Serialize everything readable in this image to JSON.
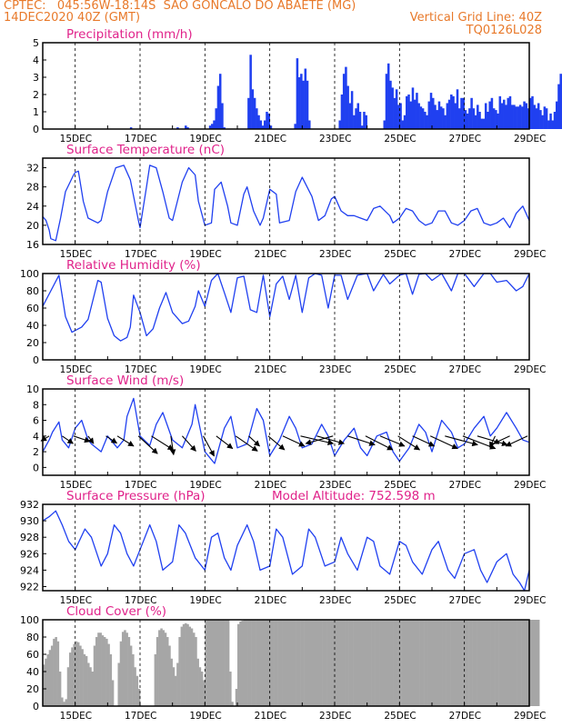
{
  "header": {
    "line1_left": "CPTEC:   045:56W-18:14S  SAO GONCALO DO ABAETE (MG)",
    "line2_left": "14DEC2020 40Z (GMT)",
    "line2_right": "Vertical Grid Line: 40Z",
    "line3_right": "TQ0126L028"
  },
  "colors": {
    "header": "#e8792a",
    "title": "#e0228a",
    "line": "#2040f0",
    "cloud": "#a6a6a6",
    "arrow": "#000000"
  },
  "x_axis": {
    "range_days": [
      14.0,
      29.0
    ],
    "ticks": [
      15,
      17,
      19,
      21,
      23,
      25,
      27,
      29
    ],
    "tick_labels": [
      "15DEC",
      "17DEC",
      "19DEC",
      "21DEC",
      "23DEC",
      "25DEC",
      "27DEC",
      "29DEC"
    ]
  },
  "chart_data": [
    {
      "type": "bar",
      "title": "Precipitation (mm/h)",
      "ylim": [
        0,
        5
      ],
      "yticks": [
        0,
        1,
        2,
        3,
        4,
        5
      ],
      "x_start_day": 14.0,
      "x_step_days": 0.0625,
      "values": [
        0,
        0,
        0,
        0,
        0,
        0,
        0,
        0,
        0,
        0,
        0,
        0,
        0,
        0,
        0,
        0,
        0,
        0,
        0,
        0,
        0,
        0,
        0,
        0,
        0,
        0,
        0,
        0,
        0,
        0,
        0,
        0,
        0,
        0,
        0,
        0,
        0,
        0,
        0,
        0,
        0,
        0,
        0,
        0.1,
        0,
        0,
        0,
        0,
        0,
        0,
        0,
        0,
        0,
        0,
        0,
        0,
        0,
        0,
        0,
        0,
        0,
        0,
        0,
        0,
        0,
        0,
        0.1,
        0,
        0,
        0,
        0.2,
        0.1,
        0,
        0,
        0,
        0,
        0,
        0,
        0,
        0,
        0,
        0,
        0.2,
        0.3,
        0.5,
        1.2,
        2.5,
        3.2,
        1.5,
        0.1,
        0,
        0,
        0,
        0,
        0,
        0,
        0,
        0,
        0,
        0,
        0,
        1.8,
        4.3,
        2.3,
        1.8,
        1.2,
        0.8,
        0.5,
        0.2,
        0.5,
        1.0,
        0.9,
        0.2,
        0,
        0,
        0,
        0,
        0,
        0,
        0,
        0,
        0,
        0,
        0,
        0.3,
        4.1,
        3.0,
        3.2,
        2.8,
        3.5,
        2.8,
        0.5,
        0,
        0,
        0,
        0,
        0,
        0,
        0,
        0,
        0,
        0,
        0,
        0,
        0,
        0,
        0.5,
        2.0,
        3.2,
        3.6,
        2.5,
        1.5,
        2.2,
        0.8,
        1.2,
        1.5,
        1.0,
        0.2,
        1.0,
        0.8,
        0,
        0,
        0,
        0,
        0,
        0,
        0,
        0,
        0.5,
        3.2,
        3.8,
        2.8,
        2.4,
        1.8,
        2.3,
        1.4,
        1.5,
        0.5,
        0.8,
        1.9,
        2.0,
        1.6,
        2.4,
        1.7,
        2.1,
        1.5,
        1.3,
        1.2,
        1.0,
        0.8,
        1.6,
        2.1,
        1.8,
        1.4,
        1.1,
        1.6,
        1.3,
        1.2,
        0.8,
        1.5,
        1.7,
        2.0,
        1.9,
        1.5,
        2.3,
        1.2,
        1.8,
        1.8,
        1.1,
        0.9,
        1.2,
        1.8,
        1.2,
        0.8,
        1.4,
        1.0,
        0.6,
        0.6,
        1.5,
        1.0,
        1.6,
        1.8,
        1.2,
        1.1,
        0.9,
        1.9,
        1.5,
        1.7,
        1.4,
        1.8,
        1.9,
        1.4,
        1.4,
        1.3,
        1.3,
        1.4,
        1.3,
        1.6,
        1.5,
        1.2,
        1.8,
        1.9,
        1.4,
        1.2,
        1.5,
        1.1,
        0.8,
        1.3,
        1.2,
        0.5,
        0.9,
        0.5,
        1.0,
        1.6,
        2.6,
        3.2,
        2.9,
        1.5,
        0.6,
        0.3,
        0.1
      ]
    },
    {
      "type": "line",
      "title": "Surface Temperature (nC)",
      "ylim": [
        16,
        34
      ],
      "yticks": [
        16,
        20,
        24,
        28,
        32
      ],
      "x": [
        14.0,
        14.1,
        14.2,
        14.25,
        14.4,
        14.55,
        14.7,
        14.95,
        15.0,
        15.1,
        15.25,
        15.4,
        15.7,
        15.8,
        16.0,
        16.25,
        16.5,
        16.7,
        16.95,
        17.0,
        17.2,
        17.3,
        17.5,
        17.7,
        17.9,
        18.0,
        18.3,
        18.5,
        18.7,
        18.8,
        19.0,
        19.2,
        19.3,
        19.5,
        19.7,
        19.8,
        20.0,
        20.2,
        20.3,
        20.5,
        20.7,
        20.8,
        21.0,
        21.2,
        21.3,
        21.6,
        21.8,
        22.0,
        22.3,
        22.5,
        22.7,
        22.9,
        23.0,
        23.2,
        23.4,
        23.6,
        23.8,
        24.0,
        24.2,
        24.4,
        24.7,
        24.8,
        25.0,
        25.2,
        25.4,
        25.6,
        25.8,
        26.0,
        26.2,
        26.4,
        26.6,
        26.8,
        27.0,
        27.2,
        27.4,
        27.6,
        27.8,
        28.0,
        28.2,
        28.4,
        28.6,
        28.8,
        29.0
      ],
      "values": [
        21.8,
        21.0,
        19.0,
        17.2,
        16.8,
        21.5,
        27.0,
        30.5,
        31.0,
        31.3,
        25.0,
        21.5,
        20.5,
        21.0,
        27.0,
        32.0,
        32.5,
        29.5,
        21.0,
        19.5,
        28.0,
        32.5,
        32.0,
        27.0,
        21.5,
        21.0,
        29.0,
        32.0,
        30.5,
        25.0,
        20.0,
        20.5,
        27.5,
        29.0,
        24.0,
        20.5,
        20.0,
        26.5,
        28.0,
        23.0,
        20.0,
        21.5,
        27.5,
        26.5,
        20.5,
        21.0,
        27.0,
        30.0,
        26.0,
        21.0,
        22.0,
        25.5,
        26.0,
        23.0,
        22.0,
        22.0,
        21.5,
        21.0,
        23.5,
        24.0,
        22.0,
        20.5,
        21.5,
        23.5,
        23.0,
        21.0,
        20.0,
        20.5,
        23.0,
        23.0,
        20.5,
        20.0,
        21.0,
        23.0,
        23.5,
        20.5,
        20.0,
        20.5,
        21.5,
        19.5,
        22.5,
        24.0,
        21.0
      ]
    },
    {
      "type": "line",
      "title": "Relative Humidity (%)",
      "ylim": [
        0,
        100
      ],
      "yticks": [
        0,
        20,
        40,
        60,
        80,
        100
      ],
      "x": [
        14.0,
        14.25,
        14.5,
        14.7,
        14.9,
        15.2,
        15.4,
        15.7,
        15.8,
        16.0,
        16.2,
        16.4,
        16.6,
        16.7,
        16.8,
        17.0,
        17.2,
        17.4,
        17.6,
        17.8,
        18.0,
        18.3,
        18.5,
        18.7,
        18.8,
        19.0,
        19.2,
        19.4,
        19.6,
        19.8,
        20.0,
        20.2,
        20.4,
        20.6,
        20.8,
        21.0,
        21.2,
        21.4,
        21.6,
        21.8,
        22.0,
        22.2,
        22.4,
        22.6,
        22.8,
        23.0,
        23.2,
        23.4,
        23.7,
        24.0,
        24.2,
        24.5,
        24.7,
        25.0,
        25.2,
        25.4,
        25.6,
        25.8,
        26.0,
        26.3,
        26.6,
        26.8,
        27.0,
        27.3,
        27.6,
        27.8,
        28.0,
        28.3,
        28.6,
        28.8,
        29.0
      ],
      "values": [
        62,
        80,
        98,
        50,
        32,
        38,
        47,
        92,
        90,
        48,
        28,
        22,
        26,
        38,
        75,
        55,
        28,
        36,
        60,
        78,
        55,
        42,
        45,
        62,
        80,
        62,
        92,
        100,
        78,
        55,
        95,
        97,
        58,
        55,
        98,
        50,
        88,
        97,
        70,
        98,
        55,
        95,
        100,
        98,
        60,
        98,
        98,
        70,
        98,
        100,
        80,
        99,
        88,
        98,
        100,
        76,
        99,
        100,
        92,
        100,
        80,
        100,
        100,
        85,
        100,
        100,
        90,
        92,
        80,
        85,
        100
      ]
    },
    {
      "type": "line",
      "title": "Surface Wind (m/s)",
      "ylim": [
        -1,
        10
      ],
      "yticks": [
        0,
        2,
        4,
        6,
        8,
        10
      ],
      "x": [
        14.0,
        14.2,
        14.3,
        14.5,
        14.6,
        14.8,
        15.0,
        15.2,
        15.4,
        15.5,
        15.8,
        16.0,
        16.3,
        16.5,
        16.6,
        16.8,
        17.0,
        17.3,
        17.5,
        17.7,
        18.0,
        18.3,
        18.6,
        18.7,
        19.0,
        19.3,
        19.6,
        19.8,
        20.0,
        20.3,
        20.6,
        20.8,
        21.0,
        21.3,
        21.6,
        21.8,
        22.0,
        22.3,
        22.6,
        22.8,
        23.0,
        23.3,
        23.6,
        23.8,
        24.0,
        24.3,
        24.6,
        24.8,
        25.0,
        25.3,
        25.6,
        25.8,
        26.0,
        26.3,
        26.6,
        26.8,
        27.0,
        27.3,
        27.6,
        27.8,
        28.0,
        28.3,
        28.6,
        28.8,
        29.0
      ],
      "values": [
        2.0,
        3.5,
        4.5,
        5.8,
        3.5,
        2.5,
        5.0,
        6.0,
        3.5,
        3.0,
        2.0,
        4.0,
        2.5,
        3.5,
        6.5,
        8.8,
        4.0,
        2.8,
        5.5,
        7.0,
        3.5,
        2.5,
        5.5,
        8.0,
        2.0,
        0.5,
        5.0,
        6.5,
        2.5,
        3.0,
        7.5,
        6.0,
        1.5,
        3.5,
        6.5,
        5.0,
        2.5,
        3.0,
        5.5,
        4.0,
        1.5,
        3.5,
        5.0,
        2.5,
        1.5,
        4.0,
        4.5,
        2.0,
        0.8,
        2.5,
        5.5,
        4.5,
        2.0,
        6.0,
        4.5,
        2.5,
        3.0,
        5.0,
        6.5,
        4.0,
        5.0,
        7.0,
        5.0,
        3.5,
        3.2
      ],
      "arrows": [
        [
          14.2,
          0.2,
          -0.15
        ],
        [
          14.95,
          0.22,
          0.3
        ],
        [
          15.95,
          0.28,
          0.2
        ],
        [
          16.95,
          0.7,
          0.35
        ],
        [
          17.95,
          0.75,
          0.05
        ],
        [
          18.95,
          0.8,
          0.2
        ],
        [
          19.95,
          0.6,
          0.4
        ],
        [
          20.95,
          0.55,
          0.3
        ],
        [
          21.95,
          0.3,
          0.6
        ],
        [
          22.95,
          0.3,
          -0.5
        ],
        [
          23.95,
          0.55,
          0.5
        ],
        [
          24.95,
          0.55,
          0.4
        ],
        [
          25.95,
          0.5,
          0.5
        ],
        [
          26.95,
          0.5,
          0.6
        ],
        [
          27.95,
          0.45,
          -0.1
        ],
        [
          28.95,
          0.4,
          -0.4
        ],
        [
          14.6,
          0.3,
          0.2
        ],
        [
          15.4,
          0.3,
          0.1
        ],
        [
          16.3,
          0.4,
          0.3
        ],
        [
          17.35,
          0.55,
          0.4
        ],
        [
          18.3,
          0.6,
          0.25
        ],
        [
          19.35,
          0.5,
          0.3
        ],
        [
          20.35,
          0.4,
          0.2
        ],
        [
          21.4,
          0.4,
          0.4
        ],
        [
          22.45,
          0.3,
          0.5
        ],
        [
          23.4,
          0.35,
          0.5
        ],
        [
          24.4,
          0.4,
          0.45
        ],
        [
          25.4,
          0.4,
          0.4
        ],
        [
          26.4,
          0.35,
          0.6
        ],
        [
          27.4,
          0.35,
          0.55
        ],
        [
          28.4,
          0.3,
          -0.3
        ]
      ]
    },
    {
      "type": "line",
      "title": "Surface Pressure (hPa)",
      "subtitle": "Model Altitude: 752.598 m",
      "ylim": [
        921.5,
        932
      ],
      "yticks": [
        922,
        924,
        926,
        928,
        930,
        932
      ],
      "x": [
        14.0,
        14.2,
        14.4,
        14.6,
        14.8,
        15.0,
        15.3,
        15.5,
        15.8,
        16.0,
        16.2,
        16.4,
        16.6,
        16.8,
        17.0,
        17.3,
        17.5,
        17.7,
        18.0,
        18.2,
        18.4,
        18.7,
        19.0,
        19.2,
        19.4,
        19.6,
        19.8,
        20.0,
        20.3,
        20.5,
        20.7,
        21.0,
        21.2,
        21.4,
        21.7,
        22.0,
        22.2,
        22.4,
        22.7,
        23.0,
        23.2,
        23.4,
        23.7,
        24.0,
        24.2,
        24.4,
        24.7,
        25.0,
        25.2,
        25.4,
        25.7,
        26.0,
        26.2,
        26.5,
        26.7,
        27.0,
        27.3,
        27.5,
        27.7,
        28.0,
        28.3,
        28.5,
        28.7,
        28.85,
        29.0
      ],
      "values": [
        930.0,
        930.5,
        931.2,
        929.5,
        927.5,
        926.5,
        929.0,
        928.0,
        924.5,
        926.0,
        929.5,
        928.5,
        926.0,
        924.5,
        926.5,
        929.5,
        927.5,
        924.0,
        925.0,
        929.5,
        928.5,
        925.5,
        924.0,
        928.0,
        928.5,
        925.5,
        924.0,
        927.0,
        929.5,
        927.5,
        924.0,
        924.5,
        929.0,
        928.0,
        923.5,
        924.5,
        929.0,
        928.0,
        924.5,
        925.0,
        928.0,
        926.0,
        924.0,
        928.0,
        927.5,
        924.5,
        923.5,
        927.5,
        927.0,
        925.0,
        923.5,
        926.5,
        927.5,
        924.0,
        923.0,
        926.0,
        926.5,
        924.0,
        922.5,
        925.0,
        926.0,
        923.5,
        922.5,
        921.5,
        924.0
      ]
    },
    {
      "type": "bar",
      "title": "Cloud Cover (%)",
      "ylim": [
        0,
        100
      ],
      "yticks": [
        0,
        20,
        40,
        60,
        80,
        100
      ],
      "x_start_day": 14.0,
      "x_step_days": 0.0625,
      "values": [
        48,
        55,
        60,
        65,
        70,
        78,
        80,
        75,
        40,
        10,
        5,
        8,
        45,
        62,
        68,
        72,
        75,
        74,
        70,
        66,
        60,
        58,
        50,
        45,
        40,
        70,
        80,
        85,
        85,
        82,
        80,
        78,
        72,
        60,
        30,
        0,
        0,
        50,
        75,
        86,
        88,
        85,
        80,
        70,
        60,
        45,
        35,
        20,
        0,
        0,
        0,
        0,
        0,
        0,
        0,
        60,
        80,
        88,
        90,
        88,
        85,
        80,
        70,
        55,
        45,
        35,
        50,
        80,
        92,
        95,
        96,
        95,
        92,
        90,
        85,
        80,
        55,
        45,
        40,
        30,
        100,
        100,
        100,
        100,
        100,
        100,
        100,
        100,
        100,
        100,
        100,
        100,
        40,
        5,
        0,
        20,
        95,
        98,
        99,
        100,
        100,
        100,
        100,
        100,
        100,
        100,
        100,
        100,
        100,
        100,
        100,
        100,
        100,
        100,
        100,
        100,
        100,
        100,
        100,
        100,
        100,
        100,
        100,
        100,
        100,
        100,
        100,
        100,
        100,
        100,
        100,
        100,
        100,
        100,
        100,
        100,
        100,
        100,
        100,
        100,
        100,
        100,
        100,
        100,
        100,
        100,
        100,
        100,
        100,
        100,
        100,
        100,
        100,
        100,
        100,
        100,
        100,
        100,
        100,
        100,
        100,
        100,
        100,
        100,
        100,
        100,
        100,
        100,
        100,
        100,
        100,
        100,
        100,
        100,
        100,
        100,
        100,
        100,
        100,
        100,
        100,
        100,
        100,
        100,
        100,
        100,
        100,
        100,
        100,
        100,
        100,
        100,
        100,
        100,
        100,
        100,
        100,
        100,
        100,
        100,
        100,
        100,
        100,
        100,
        100,
        100,
        100,
        100,
        100,
        100,
        100,
        100,
        100,
        100,
        100,
        100,
        100,
        100,
        100,
        100,
        100,
        100,
        100,
        100,
        100,
        100,
        100,
        100,
        100,
        100,
        100,
        100,
        100,
        100,
        100,
        100,
        100,
        100,
        100,
        100,
        100,
        100,
        100,
        100,
        100
      ]
    }
  ]
}
